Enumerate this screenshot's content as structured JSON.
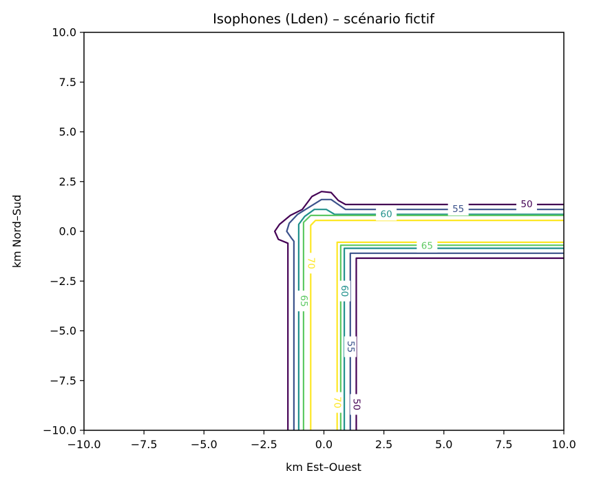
{
  "chart_data": {
    "type": "contour",
    "title": "Isophones (Lden) – scénario fictif",
    "xlabel": "km Est–Ouest",
    "ylabel": "km Nord–Sud",
    "xlim": [
      -10,
      10
    ],
    "ylim": [
      -10,
      10
    ],
    "xticks": [
      -10,
      -7.5,
      -5,
      -2.5,
      0,
      2.5,
      5,
      7.5,
      10
    ],
    "yticks": [
      -10,
      -7.5,
      -5,
      -2.5,
      0,
      2.5,
      5,
      7.5,
      10
    ],
    "xtick_labels": [
      "−10.0",
      "−7.5",
      "−5.0",
      "−2.5",
      "0.0",
      "2.5",
      "5.0",
      "7.5",
      "10.0"
    ],
    "ytick_labels": [
      "−10.0",
      "−7.5",
      "−5.0",
      "−2.5",
      "0.0",
      "2.5",
      "5.0",
      "7.5",
      "10.0"
    ],
    "grid": false,
    "colors": {
      "50": "#440154",
      "55": "#3b528b",
      "60": "#21918c",
      "65": "#5ec962",
      "70": "#fde725"
    },
    "levels": [
      {
        "level": 50,
        "label": "50",
        "paths": [
          [
            [
              10,
              1.35
            ],
            [
              0.9,
              1.35
            ],
            [
              0.6,
              1.55
            ],
            [
              0.3,
              1.95
            ],
            [
              -0.1,
              2.0
            ],
            [
              -0.5,
              1.75
            ],
            [
              -0.9,
              1.1
            ],
            [
              -1.4,
              0.8
            ],
            [
              -1.85,
              0.35
            ],
            [
              -2.05,
              0.0
            ],
            [
              -1.9,
              -0.4
            ],
            [
              -1.5,
              -0.6
            ],
            [
              -1.5,
              -10
            ]
          ],
          [
            [
              10,
              -1.35
            ],
            [
              1.35,
              -1.35
            ],
            [
              1.35,
              -10
            ]
          ]
        ],
        "labels": [
          {
            "text": "50",
            "x": 8.45,
            "y": 1.35,
            "rotate": 0
          },
          {
            "text": "50",
            "x": 1.35,
            "y": -8.7,
            "rotate": 90
          }
        ]
      },
      {
        "level": 55,
        "label": "55",
        "paths": [
          [
            [
              10,
              1.1
            ],
            [
              0.9,
              1.1
            ],
            [
              0.6,
              1.35
            ],
            [
              0.3,
              1.6
            ],
            [
              -0.1,
              1.6
            ],
            [
              -0.5,
              1.3
            ],
            [
              -1.1,
              0.85
            ],
            [
              -1.45,
              0.4
            ],
            [
              -1.55,
              0.0
            ],
            [
              -1.35,
              -0.35
            ],
            [
              -1.25,
              -0.5
            ],
            [
              -1.25,
              -10
            ]
          ],
          [
            [
              10,
              -1.1
            ],
            [
              1.1,
              -1.1
            ],
            [
              1.1,
              -10
            ]
          ]
        ],
        "labels": [
          {
            "text": "55",
            "x": 5.6,
            "y": 1.1,
            "rotate": 0
          },
          {
            "text": "55",
            "x": 1.1,
            "y": -5.8,
            "rotate": 90
          }
        ]
      },
      {
        "level": 60,
        "label": "60",
        "paths": [
          [
            [
              10,
              0.85
            ],
            [
              0.45,
              0.85
            ],
            [
              0.1,
              1.1
            ],
            [
              -0.4,
              1.1
            ],
            [
              -0.8,
              0.75
            ],
            [
              -1.05,
              0.35
            ],
            [
              -1.05,
              -10
            ]
          ],
          [
            [
              10,
              -0.85
            ],
            [
              0.85,
              -0.85
            ],
            [
              0.85,
              -10
            ]
          ]
        ],
        "labels": [
          {
            "text": "60",
            "x": 2.6,
            "y": 0.85,
            "rotate": 0
          },
          {
            "text": "60",
            "x": 0.85,
            "y": -3.0,
            "rotate": 90
          }
        ]
      },
      {
        "level": 65,
        "label": "65",
        "paths": [
          [
            [
              10,
              0.8
            ],
            [
              -0.55,
              0.8
            ],
            [
              -0.85,
              0.45
            ],
            [
              -0.85,
              -10
            ]
          ],
          [
            [
              10,
              -0.7
            ],
            [
              0.7,
              -0.7
            ],
            [
              0.7,
              -10
            ]
          ]
        ],
        "labels": [
          {
            "text": "65",
            "x": 4.3,
            "y": -0.75,
            "rotate": 0
          },
          {
            "text": "65",
            "x": -0.85,
            "y": -3.5,
            "rotate": 90
          }
        ]
      },
      {
        "level": 70,
        "label": "70",
        "paths": [
          [
            [
              10,
              0.55
            ],
            [
              -0.35,
              0.55
            ],
            [
              -0.55,
              0.3
            ],
            [
              -0.55,
              -10
            ]
          ],
          [
            [
              10,
              -0.55
            ],
            [
              0.55,
              -0.55
            ],
            [
              0.55,
              -10
            ]
          ]
        ],
        "labels": [
          {
            "text": "70",
            "x": -0.55,
            "y": -1.6,
            "rotate": 90
          },
          {
            "text": "70",
            "x": 0.55,
            "y": -8.6,
            "rotate": 90
          }
        ]
      }
    ]
  }
}
